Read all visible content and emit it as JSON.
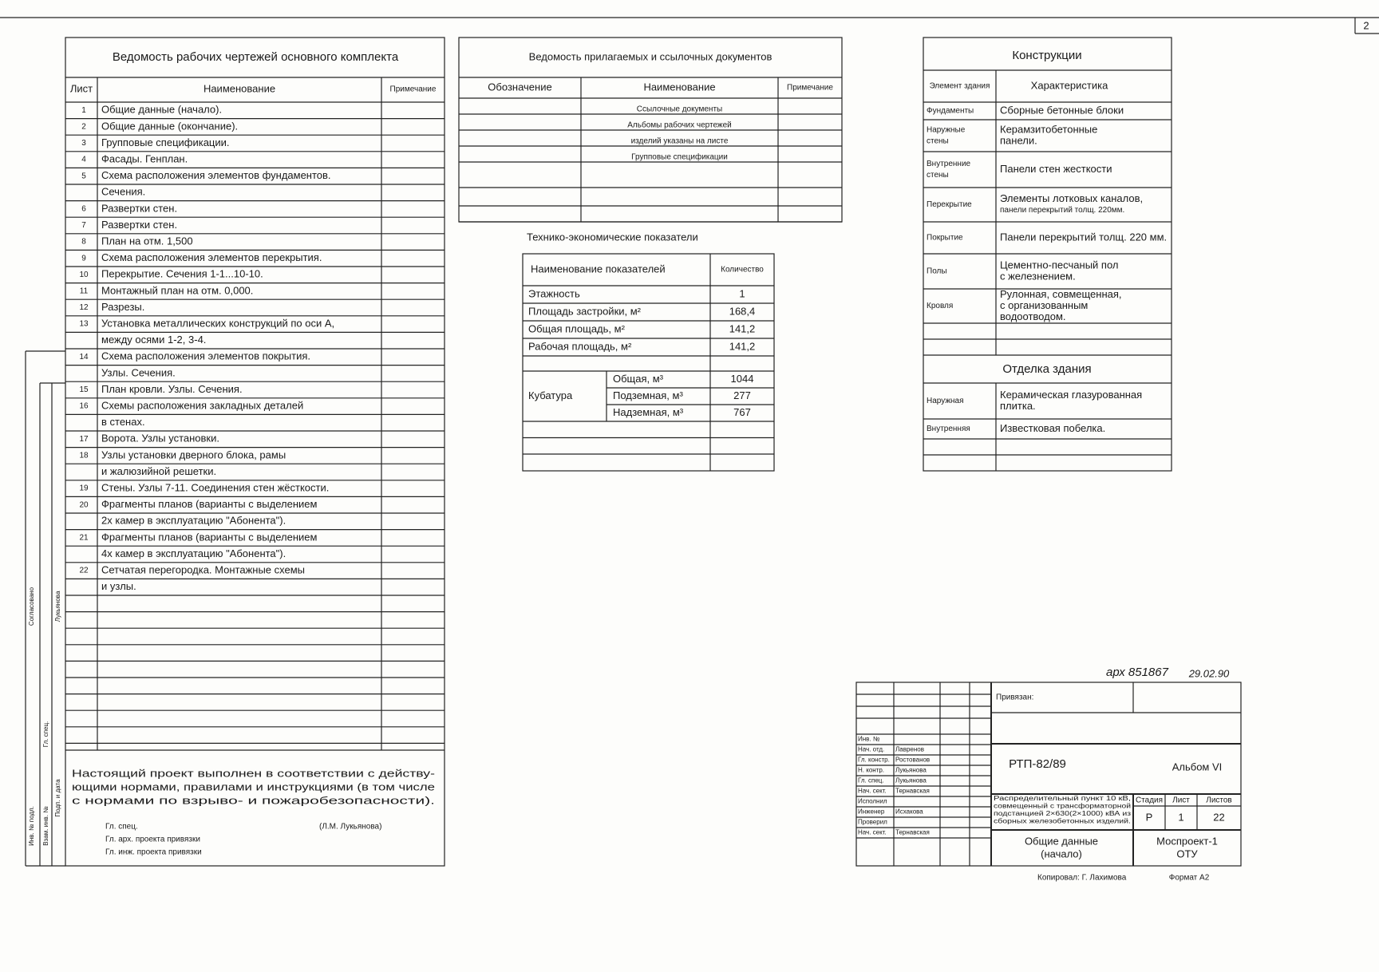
{
  "sheet_list": {
    "title": "Ведомость рабочих чертежей основного комплекта",
    "headers": [
      "Лист",
      "Наименование",
      "Примечание"
    ],
    "rows": [
      {
        "num": "1",
        "lines": [
          "Общие данные (начало)."
        ]
      },
      {
        "num": "2",
        "lines": [
          "Общие данные (окончание)."
        ]
      },
      {
        "num": "3",
        "lines": [
          "Групповые спецификации."
        ]
      },
      {
        "num": "4",
        "lines": [
          "Фасады. Генплан."
        ]
      },
      {
        "num": "5",
        "lines": [
          "Схема расположения элементов фундаментов.",
          "Сечения."
        ]
      },
      {
        "num": "6",
        "lines": [
          "Развертки стен."
        ]
      },
      {
        "num": "7",
        "lines": [
          "Развертки стен."
        ]
      },
      {
        "num": "8",
        "lines": [
          "План на отм. 1,500"
        ]
      },
      {
        "num": "9",
        "lines": [
          "Схема расположения элементов перекрытия."
        ]
      },
      {
        "num": "10",
        "lines": [
          "Перекрытие. Сечения 1-1...10-10."
        ]
      },
      {
        "num": "11",
        "lines": [
          "Монтажный план на отм. 0,000."
        ]
      },
      {
        "num": "12",
        "lines": [
          "Разрезы."
        ]
      },
      {
        "num": "13",
        "lines": [
          "Установка металлических конструкций по оси А,",
          "между осями 1-2, 3-4."
        ]
      },
      {
        "num": "14",
        "lines": [
          "Схема расположения элементов покрытия.",
          "Узлы. Сечения."
        ]
      },
      {
        "num": "15",
        "lines": [
          "План кровли. Узлы. Сечения."
        ]
      },
      {
        "num": "16",
        "lines": [
          "Схемы расположения закладных деталей",
          "в стенах."
        ]
      },
      {
        "num": "17",
        "lines": [
          "Ворота. Узлы установки."
        ]
      },
      {
        "num": "18",
        "lines": [
          "Узлы установки дверного блока, рамы",
          "и жалюзийной решетки."
        ]
      },
      {
        "num": "19",
        "lines": [
          "Стены. Узлы 7-11. Соединения стен жёсткости."
        ]
      },
      {
        "num": "20",
        "lines": [
          "Фрагменты планов (варианты с выделением",
          "2х камер в эксплуатацию \"Абонента\")."
        ]
      },
      {
        "num": "21",
        "lines": [
          "Фрагменты планов (варианты с выделением",
          "4х камер в эксплуатацию \"Абонента\")."
        ]
      },
      {
        "num": "22",
        "lines": [
          "Сетчатая перегородка. Монтажные схемы",
          "и узлы."
        ]
      }
    ]
  },
  "documents": {
    "title": "Ведомость прилагаемых и ссылочных документов",
    "headers": [
      "Обозначение",
      "Наименование",
      "Примечание"
    ],
    "rows": [
      "Ссылочные документы",
      "Альбомы рабочих чертежей",
      "изделий указаны на листе",
      "Групповые спецификации"
    ]
  },
  "indicators": {
    "title": "Технико-экономические показатели",
    "headers": [
      "Наименование показателей",
      "Количество"
    ],
    "rows": [
      {
        "name": "Этажность",
        "value": "1"
      },
      {
        "name": "Площадь застройки, м²",
        "value": "168,4"
      },
      {
        "name": "Общая площадь, м²",
        "value": "141,2"
      },
      {
        "name": "Рабочая площадь, м²",
        "value": "141,2"
      }
    ],
    "volume": {
      "label": "Кубатура",
      "rows": [
        {
          "name": "Общая, м³",
          "value": "1044"
        },
        {
          "name": "Подземная, м³",
          "value": "277"
        },
        {
          "name": "Надземная, м³",
          "value": "767"
        }
      ]
    }
  },
  "constructions": {
    "title": "Конструкции",
    "headers": [
      "Элемент здания",
      "Характеристика"
    ],
    "rows": [
      {
        "element": [
          "Фундаменты"
        ],
        "lines": [
          "Сборные бетонные блоки"
        ]
      },
      {
        "element": [
          "Наружные",
          "стены"
        ],
        "lines": [
          "Керамзитобетонные",
          "панели."
        ]
      },
      {
        "element": [
          "Внутренние",
          "стены"
        ],
        "lines": [
          "Панели стен жесткости"
        ]
      },
      {
        "element": [
          "Перекрытие"
        ],
        "lines": [
          "Элементы лотковых каналов,",
          "панели перекрытий толщ. 220мм."
        ]
      },
      {
        "element": [
          "Покрытие"
        ],
        "lines": [
          "Панели перекрытий толщ. 220 мм."
        ]
      },
      {
        "element": [
          "Полы"
        ],
        "lines": [
          "Цементно-песчаный пол",
          "с железнением."
        ]
      },
      {
        "element": [
          "Кровля"
        ],
        "lines": [
          "Рулонная, совмещенная,",
          "с организованным",
          "водоотводом."
        ]
      }
    ]
  },
  "finishing": {
    "title": "Отделка здания",
    "rows": [
      {
        "element": [
          "Наружная"
        ],
        "lines": [
          "Керамическая глазурованная",
          "плитка."
        ]
      },
      {
        "element": [
          "Внутренняя"
        ],
        "lines": [
          "Известковая побелка."
        ]
      }
    ]
  },
  "note": {
    "lines": [
      "Настоящий проект выполнен в соответствии с действу-",
      "ющими нормами, правилами и инструкциями (в том числе",
      "с нормами по взрыво- и пожаробезопасности)."
    ],
    "signatures": [
      {
        "role": "Гл. спец.",
        "name": "(Л.М. Лукьянова)"
      },
      {
        "role": "Гл. арх. проекта привязки"
      },
      {
        "role": "Гл. инж. проекта привязки"
      }
    ]
  },
  "margin_stamp": [
    "Согласовано",
    "Гл. спец.",
    "Лукьянова",
    "Взам. инв. №",
    "Подп. и дата",
    "Инв. № подл."
  ],
  "title_block": {
    "archive": "арх 851867",
    "date": "29.02.90",
    "bound": "Привязан:",
    "staff": [
      {
        "role": "Инв. №"
      },
      {
        "role": "Нач. отд.",
        "name": "Лавренов"
      },
      {
        "role": "Гл. констр.",
        "name": "Ростованов"
      },
      {
        "role": "Н. контр.",
        "name": "Лукьянова"
      },
      {
        "role": "Гл. спец.",
        "name": "Лукьянова"
      },
      {
        "role": "Нач. сект.",
        "name": "Тернавская"
      },
      {
        "role": "Исполнил"
      },
      {
        "role": "Инженер",
        "name": "Исхакова"
      },
      {
        "role": "Проверил"
      },
      {
        "role": "Нач. сект.",
        "name": "Тернавская"
      }
    ],
    "code": "РТП-82/89",
    "album": "Альбом VI",
    "description": [
      "Распределительный пункт 10 кВ,",
      "совмещенный с трансформаторной",
      "подстанцией 2×630(2×1000) кВА из",
      "сборных железобетонных изделий."
    ],
    "stage_headers": [
      "Стадия",
      "Лист",
      "Листов"
    ],
    "stage_values": [
      "Р",
      "1",
      "22"
    ],
    "sheet_name": [
      "Общие данные",
      "(начало)"
    ],
    "organization": [
      "Моспроект-1",
      "ОТУ"
    ],
    "copied": "Копировал: Г. Лахимова",
    "format": "Формат А2",
    "page": "2"
  }
}
